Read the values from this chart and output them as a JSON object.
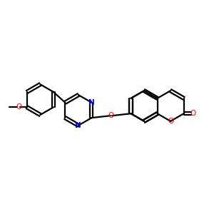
{
  "bg_color": "#ffffff",
  "bond_color": "#000000",
  "nitrogen_color": "#0000cc",
  "oxygen_color": "#ff0000",
  "line_width": 1.6,
  "figsize": [
    3.0,
    3.0
  ],
  "dpi": 100,
  "xlim": [
    0,
    10
  ],
  "ylim": [
    0,
    10
  ]
}
